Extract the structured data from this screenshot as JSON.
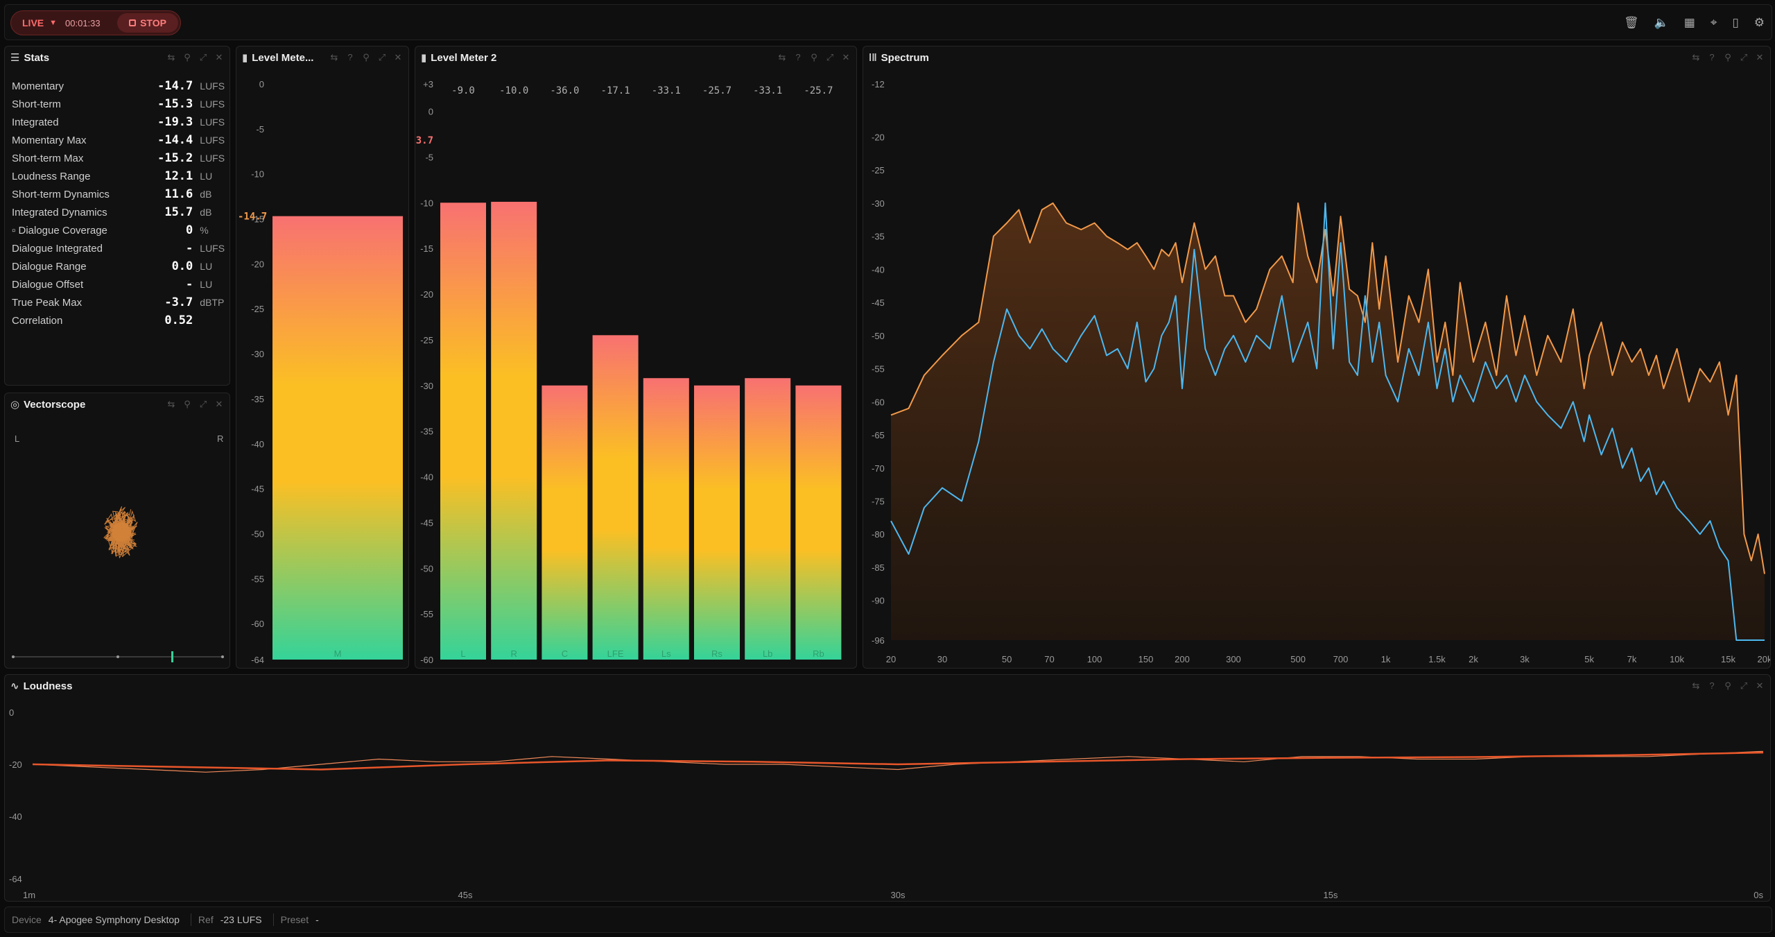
{
  "topbar": {
    "live_label": "LIVE",
    "elapsed": "00:01:33",
    "stop_label": "STOP",
    "icons": [
      "trash-icon",
      "speaker-icon",
      "grid-icon",
      "focus-icon",
      "bookmark-icon",
      "gear-icon"
    ]
  },
  "stats": {
    "title": "Stats",
    "rows": [
      {
        "label": "Momentary",
        "value": "-14.7",
        "unit": "LUFS"
      },
      {
        "label": "Short-term",
        "value": "-15.3",
        "unit": "LUFS"
      },
      {
        "label": "Integrated",
        "value": "-19.3",
        "unit": "LUFS"
      },
      {
        "label": "Momentary Max",
        "value": "-14.4",
        "unit": "LUFS"
      },
      {
        "label": "Short-term Max",
        "value": "-15.2",
        "unit": "LUFS"
      },
      {
        "label": "Loudness Range",
        "value": "12.1",
        "unit": "LU"
      },
      {
        "label": "Short-term Dynamics",
        "value": "11.6",
        "unit": "dB"
      },
      {
        "label": "Integrated Dynamics",
        "value": "15.7",
        "unit": "dB"
      },
      {
        "label": "Dialogue Coverage",
        "value": "0",
        "unit": "%"
      },
      {
        "label": "Dialogue Integrated",
        "value": "-",
        "unit": "LUFS"
      },
      {
        "label": "Dialogue Range",
        "value": "0.0",
        "unit": "LU"
      },
      {
        "label": "Dialogue Offset",
        "value": "-",
        "unit": "LU"
      },
      {
        "label": "True Peak Max",
        "value": "-3.7",
        "unit": "dBTP"
      },
      {
        "label": "Correlation",
        "value": "0.52",
        "unit": ""
      }
    ]
  },
  "vectorscope": {
    "title": "Vectorscope",
    "left_label": "L",
    "right_label": "R",
    "correlation": 0.52
  },
  "level_meter_1": {
    "title": "Level Mete...",
    "current_label": "-14.7",
    "axis_ticks": [
      "0",
      "-5",
      "-10",
      "-15",
      "-20",
      "-25",
      "-30",
      "-35",
      "-40",
      "-45",
      "-50",
      "-55",
      "-60",
      "-64"
    ]
  },
  "level_meter_2": {
    "title": "Level Meter 2",
    "peak_label": "-3.7",
    "axis_ticks": [
      "+3",
      "0",
      "-5",
      "-10",
      "-15",
      "-20",
      "-25",
      "-30",
      "-35",
      "-40",
      "-45",
      "-50",
      "-55",
      "-60"
    ]
  },
  "spectrum": {
    "title": "Spectrum",
    "y_ticks": [
      "-12",
      "-20",
      "-25",
      "-30",
      "-35",
      "-40",
      "-45",
      "-50",
      "-55",
      "-60",
      "-65",
      "-70",
      "-75",
      "-80",
      "-85",
      "-90",
      "-96"
    ],
    "x_ticks": [
      "20",
      "30",
      "50",
      "70",
      "100",
      "150",
      "200",
      "300",
      "500",
      "700",
      "1k",
      "1.5k",
      "2k",
      "3k",
      "5k",
      "7k",
      "10k",
      "15k",
      "20k"
    ]
  },
  "loudness": {
    "title": "Loudness",
    "y_ticks": [
      "0",
      "-20",
      "-40",
      "-64"
    ],
    "x_ticks": [
      "1m",
      "45s",
      "30s",
      "15s",
      "0s"
    ]
  },
  "footer": {
    "device_key": "Device",
    "device_value": "4- Apogee Symphony Desktop",
    "ref_key": "Ref",
    "ref_value": "-23 LUFS",
    "preset_key": "Preset",
    "preset_value": "-"
  },
  "colors": {
    "accent_orange": "#f39a4a",
    "accent_blue": "#4db8f0",
    "loudness_line": "#e8562a",
    "live_red": "#ff6b6b"
  },
  "chart_data": [
    {
      "type": "bar",
      "title": "Level Mete...",
      "categories": [
        "M"
      ],
      "values": [
        -14.7
      ],
      "ylim": [
        -64,
        0
      ]
    },
    {
      "type": "bar",
      "title": "Level Meter 2",
      "categories": [
        "L",
        "R",
        "C",
        "LFE",
        "Ls",
        "Rs",
        "Lb",
        "Rb"
      ],
      "values": [
        -9.0,
        -10.0,
        -36.0,
        -17.1,
        -33.1,
        -25.7,
        -33.1,
        -25.7
      ],
      "value_labels": [
        "-9.0",
        "-10.0",
        "-36.0",
        "-17.1",
        "-33.1",
        "-25.7",
        "-33.1",
        "-25.7"
      ],
      "bar_levels": [
        -10.0,
        -9.9,
        -30.0,
        -24.5,
        -29.2,
        -30.0,
        -29.2,
        -30.0
      ],
      "ylim": [
        -60,
        3
      ]
    },
    {
      "type": "line",
      "title": "Spectrum",
      "x_scale": "log",
      "xlim": [
        20,
        20000
      ],
      "ylim": [
        -96,
        -12
      ],
      "series": [
        {
          "color": "#f39a4a",
          "x": [
            20,
            23,
            26,
            30,
            35,
            40,
            45,
            50,
            55,
            60,
            66,
            72,
            80,
            90,
            100,
            110,
            120,
            130,
            140,
            150,
            160,
            170,
            180,
            190,
            200,
            220,
            240,
            260,
            280,
            300,
            330,
            360,
            400,
            440,
            480,
            500,
            540,
            580,
            620,
            660,
            700,
            750,
            800,
            850,
            900,
            950,
            1000,
            1100,
            1200,
            1300,
            1400,
            1500,
            1600,
            1700,
            1800,
            2000,
            2200,
            2400,
            2600,
            2800,
            3000,
            3300,
            3600,
            4000,
            4400,
            4800,
            5000,
            5500,
            6000,
            6500,
            7000,
            7500,
            8000,
            8500,
            9000,
            10000,
            11000,
            12000,
            13000,
            14000,
            15000,
            16000,
            17000,
            18000,
            19000,
            20000
          ],
          "y": [
            -62,
            -61,
            -56,
            -53,
            -50,
            -48,
            -35,
            -33,
            -31,
            -36,
            -31,
            -30,
            -33,
            -34,
            -33,
            -35,
            -36,
            -37,
            -36,
            -38,
            -40,
            -37,
            -38,
            -36,
            -42,
            -33,
            -40,
            -38,
            -44,
            -44,
            -48,
            -46,
            -40,
            -38,
            -42,
            -30,
            -38,
            -42,
            -34,
            -44,
            -32,
            -43,
            -44,
            -48,
            -36,
            -46,
            -38,
            -54,
            -44,
            -48,
            -40,
            -54,
            -48,
            -56,
            -42,
            -54,
            -48,
            -56,
            -44,
            -53,
            -47,
            -56,
            -50,
            -54,
            -46,
            -58,
            -53,
            -48,
            -56,
            -51,
            -54,
            -52,
            -56,
            -53,
            -58,
            -52,
            -60,
            -55,
            -57,
            -54,
            -62,
            -56,
            -80,
            -84,
            -80,
            -86
          ]
        },
        {
          "color": "#4db8f0",
          "x": [
            20,
            23,
            26,
            30,
            35,
            40,
            45,
            50,
            55,
            60,
            66,
            72,
            80,
            90,
            100,
            110,
            120,
            130,
            140,
            150,
            160,
            170,
            180,
            190,
            200,
            220,
            240,
            260,
            280,
            300,
            330,
            360,
            400,
            440,
            480,
            500,
            540,
            580,
            620,
            660,
            700,
            750,
            800,
            850,
            900,
            950,
            1000,
            1100,
            1200,
            1300,
            1400,
            1500,
            1600,
            1700,
            1800,
            2000,
            2200,
            2400,
            2600,
            2800,
            3000,
            3300,
            3600,
            4000,
            4400,
            4800,
            5000,
            5500,
            6000,
            6500,
            7000,
            7500,
            8000,
            8500,
            9000,
            10000,
            11000,
            12000,
            13000,
            14000,
            15000,
            16000,
            17000,
            18000,
            19000,
            20000
          ],
          "y": [
            -78,
            -83,
            -76,
            -73,
            -75,
            -66,
            -54,
            -46,
            -50,
            -52,
            -49,
            -52,
            -54,
            -50,
            -47,
            -53,
            -52,
            -55,
            -48,
            -57,
            -55,
            -50,
            -48,
            -44,
            -58,
            -37,
            -52,
            -56,
            -52,
            -50,
            -54,
            -50,
            -52,
            -44,
            -54,
            -52,
            -48,
            -55,
            -30,
            -52,
            -36,
            -54,
            -56,
            -44,
            -54,
            -48,
            -56,
            -60,
            -52,
            -56,
            -48,
            -58,
            -52,
            -60,
            -56,
            -60,
            -54,
            -58,
            -56,
            -60,
            -56,
            -60,
            -62,
            -64,
            -60,
            -66,
            -62,
            -68,
            -64,
            -70,
            -67,
            -72,
            -70,
            -74,
            -72,
            -76,
            -78,
            -80,
            -78,
            -82,
            -84,
            -96,
            -96,
            -96,
            -96,
            -96
          ]
        }
      ],
      "x_tick_labels": [
        "20",
        "30",
        "50",
        "70",
        "100",
        "150",
        "200",
        "300",
        "500",
        "700",
        "1k",
        "1.5k",
        "2k",
        "3k",
        "5k",
        "7k",
        "10k",
        "15k",
        "20k"
      ]
    },
    {
      "type": "line",
      "title": "Loudness",
      "xlim": [
        -60,
        0
      ],
      "ylim": [
        -64,
        0
      ],
      "x_tick_labels": [
        "1m",
        "45s",
        "30s",
        "15s",
        "0s"
      ],
      "series": [
        {
          "style": "momentary",
          "x": [
            -60,
            -58,
            -56,
            -54,
            -52,
            -50,
            -48,
            -46,
            -44,
            -42,
            -40,
            -38,
            -36,
            -34,
            -32,
            -30,
            -28,
            -26,
            -24,
            -22,
            -20,
            -18,
            -16,
            -14,
            -12,
            -10,
            -8,
            -6,
            -4,
            -2,
            0
          ],
          "y": [
            -20,
            -21,
            -22,
            -23,
            -22,
            -20,
            -18,
            -19,
            -19,
            -17,
            -18,
            -19,
            -20,
            -20,
            -21,
            -22,
            -20,
            -19,
            -18,
            -17,
            -18,
            -19,
            -17,
            -17,
            -18,
            -18,
            -17,
            -17,
            -17,
            -16,
            -15
          ]
        },
        {
          "style": "short-term",
          "x": [
            -60,
            -55,
            -50,
            -45,
            -40,
            -35,
            -30,
            -25,
            -20,
            -15,
            -10,
            -5,
            0
          ],
          "y": [
            -20,
            -21,
            -22,
            -20,
            -18.5,
            -19,
            -20,
            -19,
            -18,
            -17.5,
            -17.2,
            -16.5,
            -15.5
          ]
        }
      ]
    }
  ]
}
